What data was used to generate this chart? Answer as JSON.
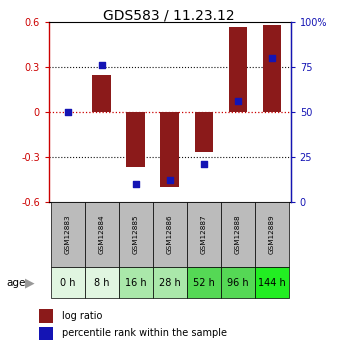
{
  "title": "GDS583 / 11.23.12",
  "samples": [
    "GSM12883",
    "GSM12884",
    "GSM12885",
    "GSM12886",
    "GSM12887",
    "GSM12888",
    "GSM12889"
  ],
  "ages": [
    "0 h",
    "8 h",
    "16 h",
    "28 h",
    "52 h",
    "96 h",
    "144 h"
  ],
  "log_ratio": [
    0.0,
    0.25,
    -0.37,
    -0.5,
    -0.27,
    0.57,
    0.58
  ],
  "percentile": [
    50,
    76,
    10,
    12,
    21,
    56,
    80
  ],
  "ylim_left": [
    -0.6,
    0.6
  ],
  "ylim_right": [
    0,
    100
  ],
  "yticks_left": [
    -0.6,
    -0.3,
    0,
    0.3,
    0.6
  ],
  "yticks_right": [
    0,
    25,
    50,
    75,
    100
  ],
  "bar_color": "#8B1A1A",
  "dot_color": "#1414B4",
  "zero_line_color": "#CC0000",
  "grid_color": "#111111",
  "left_axis_color": "#CC0000",
  "right_axis_color": "#1414B4",
  "age_colors": [
    "#e0f5e0",
    "#e0f5e0",
    "#aae8aa",
    "#aae8aa",
    "#55d855",
    "#55d855",
    "#22ee22"
  ],
  "sample_bg": "#bbbbbb",
  "title_fontsize": 10,
  "tick_fontsize": 7,
  "label_fontsize": 6,
  "age_fontsize": 7,
  "legend_fontsize": 7,
  "bar_width": 0.55
}
